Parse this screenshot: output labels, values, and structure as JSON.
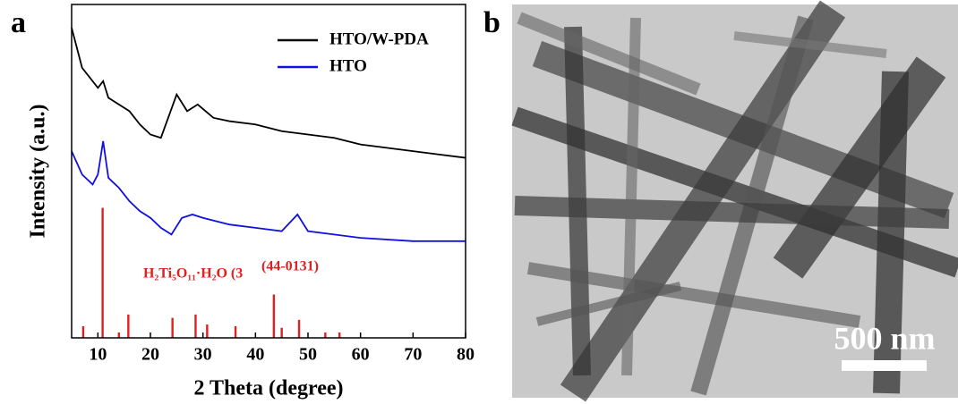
{
  "panel_labels": [
    "a",
    "b"
  ],
  "chart_data": {
    "type": "line",
    "xlabel": "2 Theta (degree)",
    "ylabel": "Intensity (a.u.)",
    "xlim": [
      5,
      80
    ],
    "xticks": [
      10,
      20,
      30,
      40,
      50,
      60,
      70,
      80
    ],
    "ylim": [
      0,
      100
    ],
    "legend": "upper right",
    "series": [
      {
        "name": "HTO/W-PDA",
        "color": "#000000",
        "x": [
          5,
          7,
          10,
          11,
          12,
          14,
          16,
          18,
          20,
          22,
          25,
          27,
          29,
          32,
          35,
          40,
          45,
          50,
          55,
          60,
          65,
          70,
          75,
          80
        ],
        "values": [
          93,
          81,
          75,
          77,
          72,
          70,
          68,
          64,
          61,
          60,
          73,
          68,
          70,
          66,
          65,
          64,
          62,
          61,
          60,
          58,
          57,
          56,
          55,
          54
        ]
      },
      {
        "name": "HTO",
        "color": "#1010e0",
        "x": [
          5,
          7,
          9,
          10,
          11,
          12,
          14,
          16,
          18,
          20,
          22,
          24,
          26,
          28,
          30,
          35,
          40,
          45,
          48,
          50,
          55,
          60,
          70,
          80
        ],
        "values": [
          56,
          49,
          46,
          49,
          59,
          48,
          45,
          41,
          38,
          36,
          33,
          31,
          36,
          37,
          36,
          34,
          33,
          32,
          37,
          32,
          31,
          30,
          29,
          29
        ]
      }
    ],
    "reference": {
      "color": "#e02020",
      "x": [
        7.2,
        10.9,
        14.0,
        15.8,
        24.2,
        28.6,
        30.8,
        36.2,
        43.5,
        45.0,
        48.3,
        53.3,
        56.0
      ],
      "values": [
        3.5,
        39,
        1.6,
        7,
        6,
        7,
        4,
        3.5,
        13,
        3,
        5.4,
        1.6,
        1.6
      ]
    },
    "annotations": [
      "H₂Ti₅O₁₁·H₂O (3",
      "(44-0131)"
    ]
  },
  "image": {
    "scale_bar": "500 nm"
  }
}
